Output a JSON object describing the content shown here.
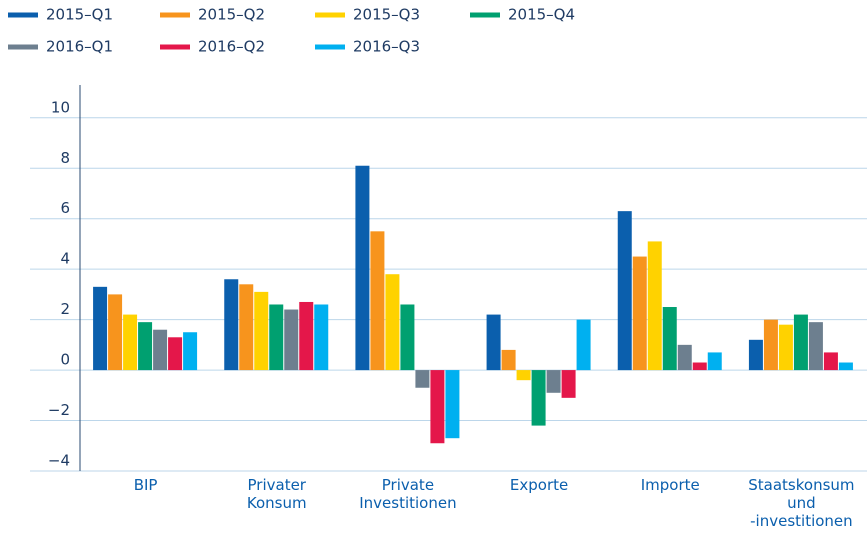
{
  "chart_data": {
    "type": "bar",
    "categories": [
      "BIP",
      "Privater\nKonsum",
      "Private\nInvestitionen",
      "Exporte",
      "Importe",
      "Staatskonsum\nund\n-investitionen"
    ],
    "series": [
      {
        "name": "2015–Q1",
        "color": "#0b5fad",
        "values": [
          3.3,
          3.6,
          8.1,
          2.2,
          6.3,
          1.2
        ]
      },
      {
        "name": "2015–Q2",
        "color": "#f7941d",
        "values": [
          3.0,
          3.4,
          5.5,
          0.8,
          4.5,
          2.0
        ]
      },
      {
        "name": "2015–Q3",
        "color": "#ffd200",
        "values": [
          2.2,
          3.1,
          3.8,
          -0.4,
          5.1,
          1.8
        ]
      },
      {
        "name": "2015–Q4",
        "color": "#00a070",
        "values": [
          1.9,
          2.6,
          2.6,
          -2.2,
          2.5,
          2.2
        ]
      },
      {
        "name": "2016–Q1",
        "color": "#6d7f8f",
        "values": [
          1.6,
          2.4,
          -0.7,
          -0.9,
          1.0,
          1.9
        ]
      },
      {
        "name": "2016–Q2",
        "color": "#e4174a",
        "values": [
          1.3,
          2.7,
          -2.9,
          -1.1,
          0.3,
          0.7
        ]
      },
      {
        "name": "2016–Q3",
        "color": "#00b0f0",
        "values": [
          1.5,
          2.6,
          -2.7,
          2.0,
          0.7,
          0.3
        ]
      }
    ],
    "ylim": [
      -4,
      11.3
    ],
    "yticks": [
      {
        "value": -4,
        "label": "−4"
      },
      {
        "value": -2,
        "label": "−2"
      },
      0,
      2,
      4,
      6,
      8,
      10
    ],
    "grid": true
  }
}
